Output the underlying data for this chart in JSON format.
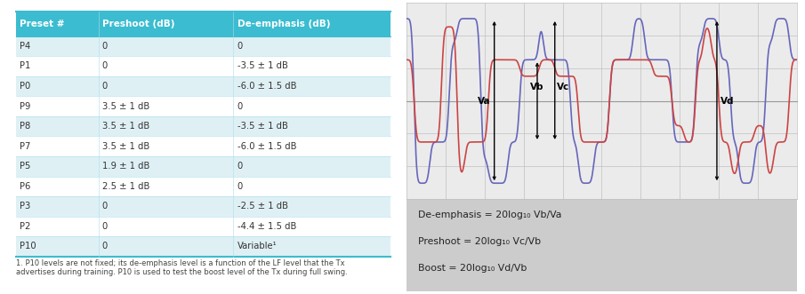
{
  "table_header": [
    "Preset #",
    "Preshoot (dB)",
    "De-emphasis (dB)"
  ],
  "table_rows": [
    [
      "P4",
      "0",
      "0"
    ],
    [
      "P1",
      "0",
      "-3.5 ± 1 dB"
    ],
    [
      "P0",
      "0",
      "-6.0 ± 1.5 dB"
    ],
    [
      "P9",
      "3.5 ± 1 dB",
      "0"
    ],
    [
      "P8",
      "3.5 ± 1 dB",
      "-3.5 ± 1 dB"
    ],
    [
      "P7",
      "3.5 ± 1 dB",
      "-6.0 ± 1.5 dB"
    ],
    [
      "P5",
      "1.9 ± 1 dB",
      "0"
    ],
    [
      "P6",
      "2.5 ± 1 dB",
      "0"
    ],
    [
      "P3",
      "0",
      "-2.5 ± 1 dB"
    ],
    [
      "P2",
      "0",
      "-4.4 ± 1.5 dB"
    ],
    [
      "P10",
      "0",
      "Variable¹"
    ]
  ],
  "footnote": "1. P10 levels are not fixed; its de-emphasis level is a function of the LF level that the Tx\nadvertises during training. P10 is used to test the boost level of the Tx during full swing.",
  "header_bg": "#3bbcd0",
  "header_fg": "#ffffff",
  "row_bg_even": "#dff0f5",
  "row_bg_odd": "#ffffff",
  "table_border": "#3bbcd0",
  "wave_bg": "#e8e8e8",
  "wave_grid_bg": "#d8d8d8",
  "wave_blue": "#6666bb",
  "wave_red": "#cc4444",
  "formula_bg": "#cccccc",
  "formula_lines": [
    "De-emphasis = 20log₁₀ Vb/Va",
    "Preshoot = 20log₁₀ Vc/Vb",
    "Boost = 20log₁₀ Vd/Vb"
  ],
  "annotations": [
    "Va",
    "Vb",
    "Vc",
    "Vd"
  ]
}
